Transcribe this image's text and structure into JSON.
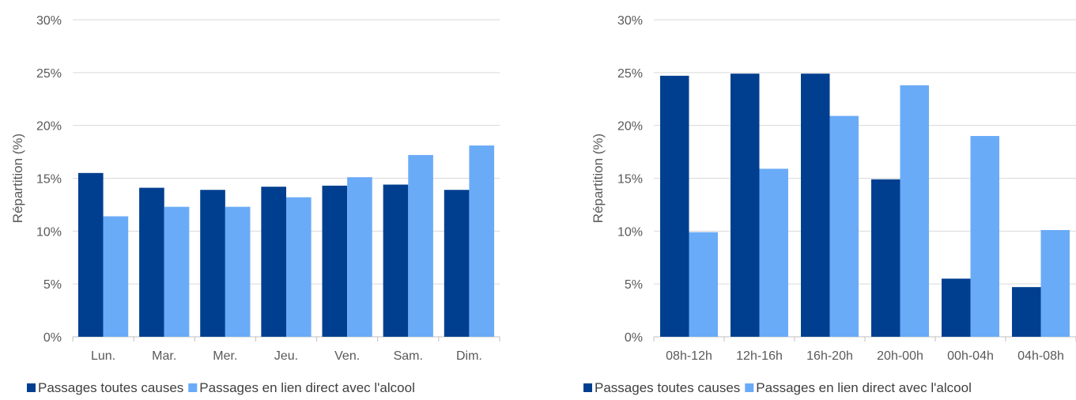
{
  "colors": {
    "series1": "#003f8f",
    "series2": "#6aabf7",
    "gridline": "#d9d9d9",
    "axis": "#bfbfbf",
    "text": "#595959"
  },
  "chart_data": [
    {
      "type": "bar",
      "title": "",
      "xlabel": "",
      "ylabel": "Répartition (%)",
      "ylim": [
        0,
        30
      ],
      "yticks": [
        "0%",
        "5%",
        "10%",
        "15%",
        "20%",
        "25%",
        "30%"
      ],
      "ytick_values": [
        0,
        5,
        10,
        15,
        20,
        25,
        30
      ],
      "grid": true,
      "legend_position": "bottom-left",
      "categories": [
        "Lun.",
        "Mar.",
        "Mer.",
        "Jeu.",
        "Ven.",
        "Sam.",
        "Dim."
      ],
      "series": [
        {
          "name": "Passages toutes causes",
          "values": [
            15.5,
            14.1,
            13.9,
            14.2,
            14.3,
            14.4,
            13.9
          ]
        },
        {
          "name": "Passages en lien direct avec l'alcool",
          "values": [
            11.4,
            12.3,
            12.3,
            13.2,
            15.1,
            17.2,
            18.1
          ]
        }
      ]
    },
    {
      "type": "bar",
      "title": "",
      "xlabel": "",
      "ylabel": "Répartition (%)",
      "ylim": [
        0,
        30
      ],
      "yticks": [
        "0%",
        "5%",
        "10%",
        "15%",
        "20%",
        "25%",
        "30%"
      ],
      "ytick_values": [
        0,
        5,
        10,
        15,
        20,
        25,
        30
      ],
      "grid": true,
      "legend_position": "bottom-left",
      "categories": [
        "08h-12h",
        "12h-16h",
        "16h-20h",
        "20h-00h",
        "00h-04h",
        "04h-08h"
      ],
      "series": [
        {
          "name": "Passages toutes causes",
          "values": [
            24.7,
            24.9,
            24.9,
            14.9,
            5.5,
            4.7
          ]
        },
        {
          "name": "Passages en lien direct avec l'alcool",
          "values": [
            9.9,
            15.9,
            20.9,
            23.8,
            19.0,
            10.1
          ]
        }
      ]
    }
  ]
}
